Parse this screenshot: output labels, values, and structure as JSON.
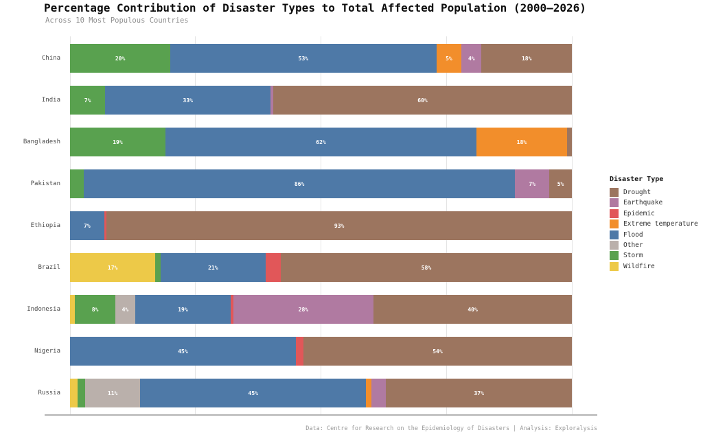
{
  "title": "Percentage Contribution of Disaster Types to Total Affected Population (2000–2026)",
  "subtitle": "Across 10 Most Populous Countries",
  "footer": "Data: Centre for Research on the Epidemiology of Disasters | Analysis: Exploralysis",
  "colors": {
    "Drought": "#9c755f",
    "Earthquake": "#b07aa1",
    "Epidemic": "#e15759",
    "Extreme temperature": "#f28e2b",
    "Flood": "#4e79a7",
    "Other": "#bab0ab",
    "Storm": "#59a14f",
    "Wildfire": "#edc948"
  },
  "legend": {
    "title": "Disaster Type",
    "items": [
      "Drought",
      "Earthquake",
      "Epidemic",
      "Extreme temperature",
      "Flood",
      "Other",
      "Storm",
      "Wildfire"
    ]
  },
  "chart_data": {
    "type": "bar",
    "variant": "horizontal-stacked-percent",
    "unit": "%",
    "xlim": [
      0,
      100
    ],
    "gridline_positions": [
      0,
      25,
      50,
      75,
      100
    ],
    "grid": "vertical-light",
    "legend_position": "right",
    "label_min_pct": 4,
    "categories": [
      "China",
      "India",
      "Bangladesh",
      "Pakistan",
      "Ethiopia",
      "Brazil",
      "Indonesia",
      "Nigeria",
      "Russia"
    ],
    "rows": [
      {
        "country": "China",
        "segments": [
          {
            "type": "Storm",
            "value": 20
          },
          {
            "type": "Flood",
            "value": 53
          },
          {
            "type": "Extreme temperature",
            "value": 5
          },
          {
            "type": "Earthquake",
            "value": 4
          },
          {
            "type": "Drought",
            "value": 18
          }
        ]
      },
      {
        "country": "India",
        "segments": [
          {
            "type": "Storm",
            "value": 7
          },
          {
            "type": "Flood",
            "value": 33
          },
          {
            "type": "Earthquake",
            "value": 0.5
          },
          {
            "type": "Drought",
            "value": 59.5
          }
        ]
      },
      {
        "country": "Bangladesh",
        "segments": [
          {
            "type": "Storm",
            "value": 19
          },
          {
            "type": "Flood",
            "value": 62
          },
          {
            "type": "Extreme temperature",
            "value": 18
          },
          {
            "type": "Drought",
            "value": 1
          }
        ]
      },
      {
        "country": "Pakistan",
        "segments": [
          {
            "type": "Storm",
            "value": 2.7
          },
          {
            "type": "Flood",
            "value": 86
          },
          {
            "type": "Earthquake",
            "value": 6.8
          },
          {
            "type": "Drought",
            "value": 4.5
          }
        ]
      },
      {
        "country": "Ethiopia",
        "segments": [
          {
            "type": "Flood",
            "value": 6.8
          },
          {
            "type": "Epidemic",
            "value": 0.5
          },
          {
            "type": "Drought",
            "value": 92.7
          }
        ]
      },
      {
        "country": "Brazil",
        "segments": [
          {
            "type": "Wildfire",
            "value": 17
          },
          {
            "type": "Storm",
            "value": 1
          },
          {
            "type": "Flood",
            "value": 21
          },
          {
            "type": "Epidemic",
            "value": 3
          },
          {
            "type": "Drought",
            "value": 58
          }
        ]
      },
      {
        "country": "Indonesia",
        "segments": [
          {
            "type": "Wildfire",
            "value": 1
          },
          {
            "type": "Storm",
            "value": 8
          },
          {
            "type": "Other",
            "value": 4
          },
          {
            "type": "Flood",
            "value": 19
          },
          {
            "type": "Epidemic",
            "value": 0.5
          },
          {
            "type": "Earthquake",
            "value": 28
          },
          {
            "type": "Drought",
            "value": 39.5
          }
        ]
      },
      {
        "country": "Nigeria",
        "segments": [
          {
            "type": "Flood",
            "value": 45
          },
          {
            "type": "Epidemic",
            "value": 1.5
          },
          {
            "type": "Drought",
            "value": 53.5
          }
        ]
      },
      {
        "country": "Russia",
        "segments": [
          {
            "type": "Wildfire",
            "value": 1.5
          },
          {
            "type": "Storm",
            "value": 1.5
          },
          {
            "type": "Other",
            "value": 11
          },
          {
            "type": "Flood",
            "value": 45
          },
          {
            "type": "Extreme temperature",
            "value": 1
          },
          {
            "type": "Earthquake",
            "value": 3
          },
          {
            "type": "Drought",
            "value": 37
          }
        ]
      }
    ]
  }
}
